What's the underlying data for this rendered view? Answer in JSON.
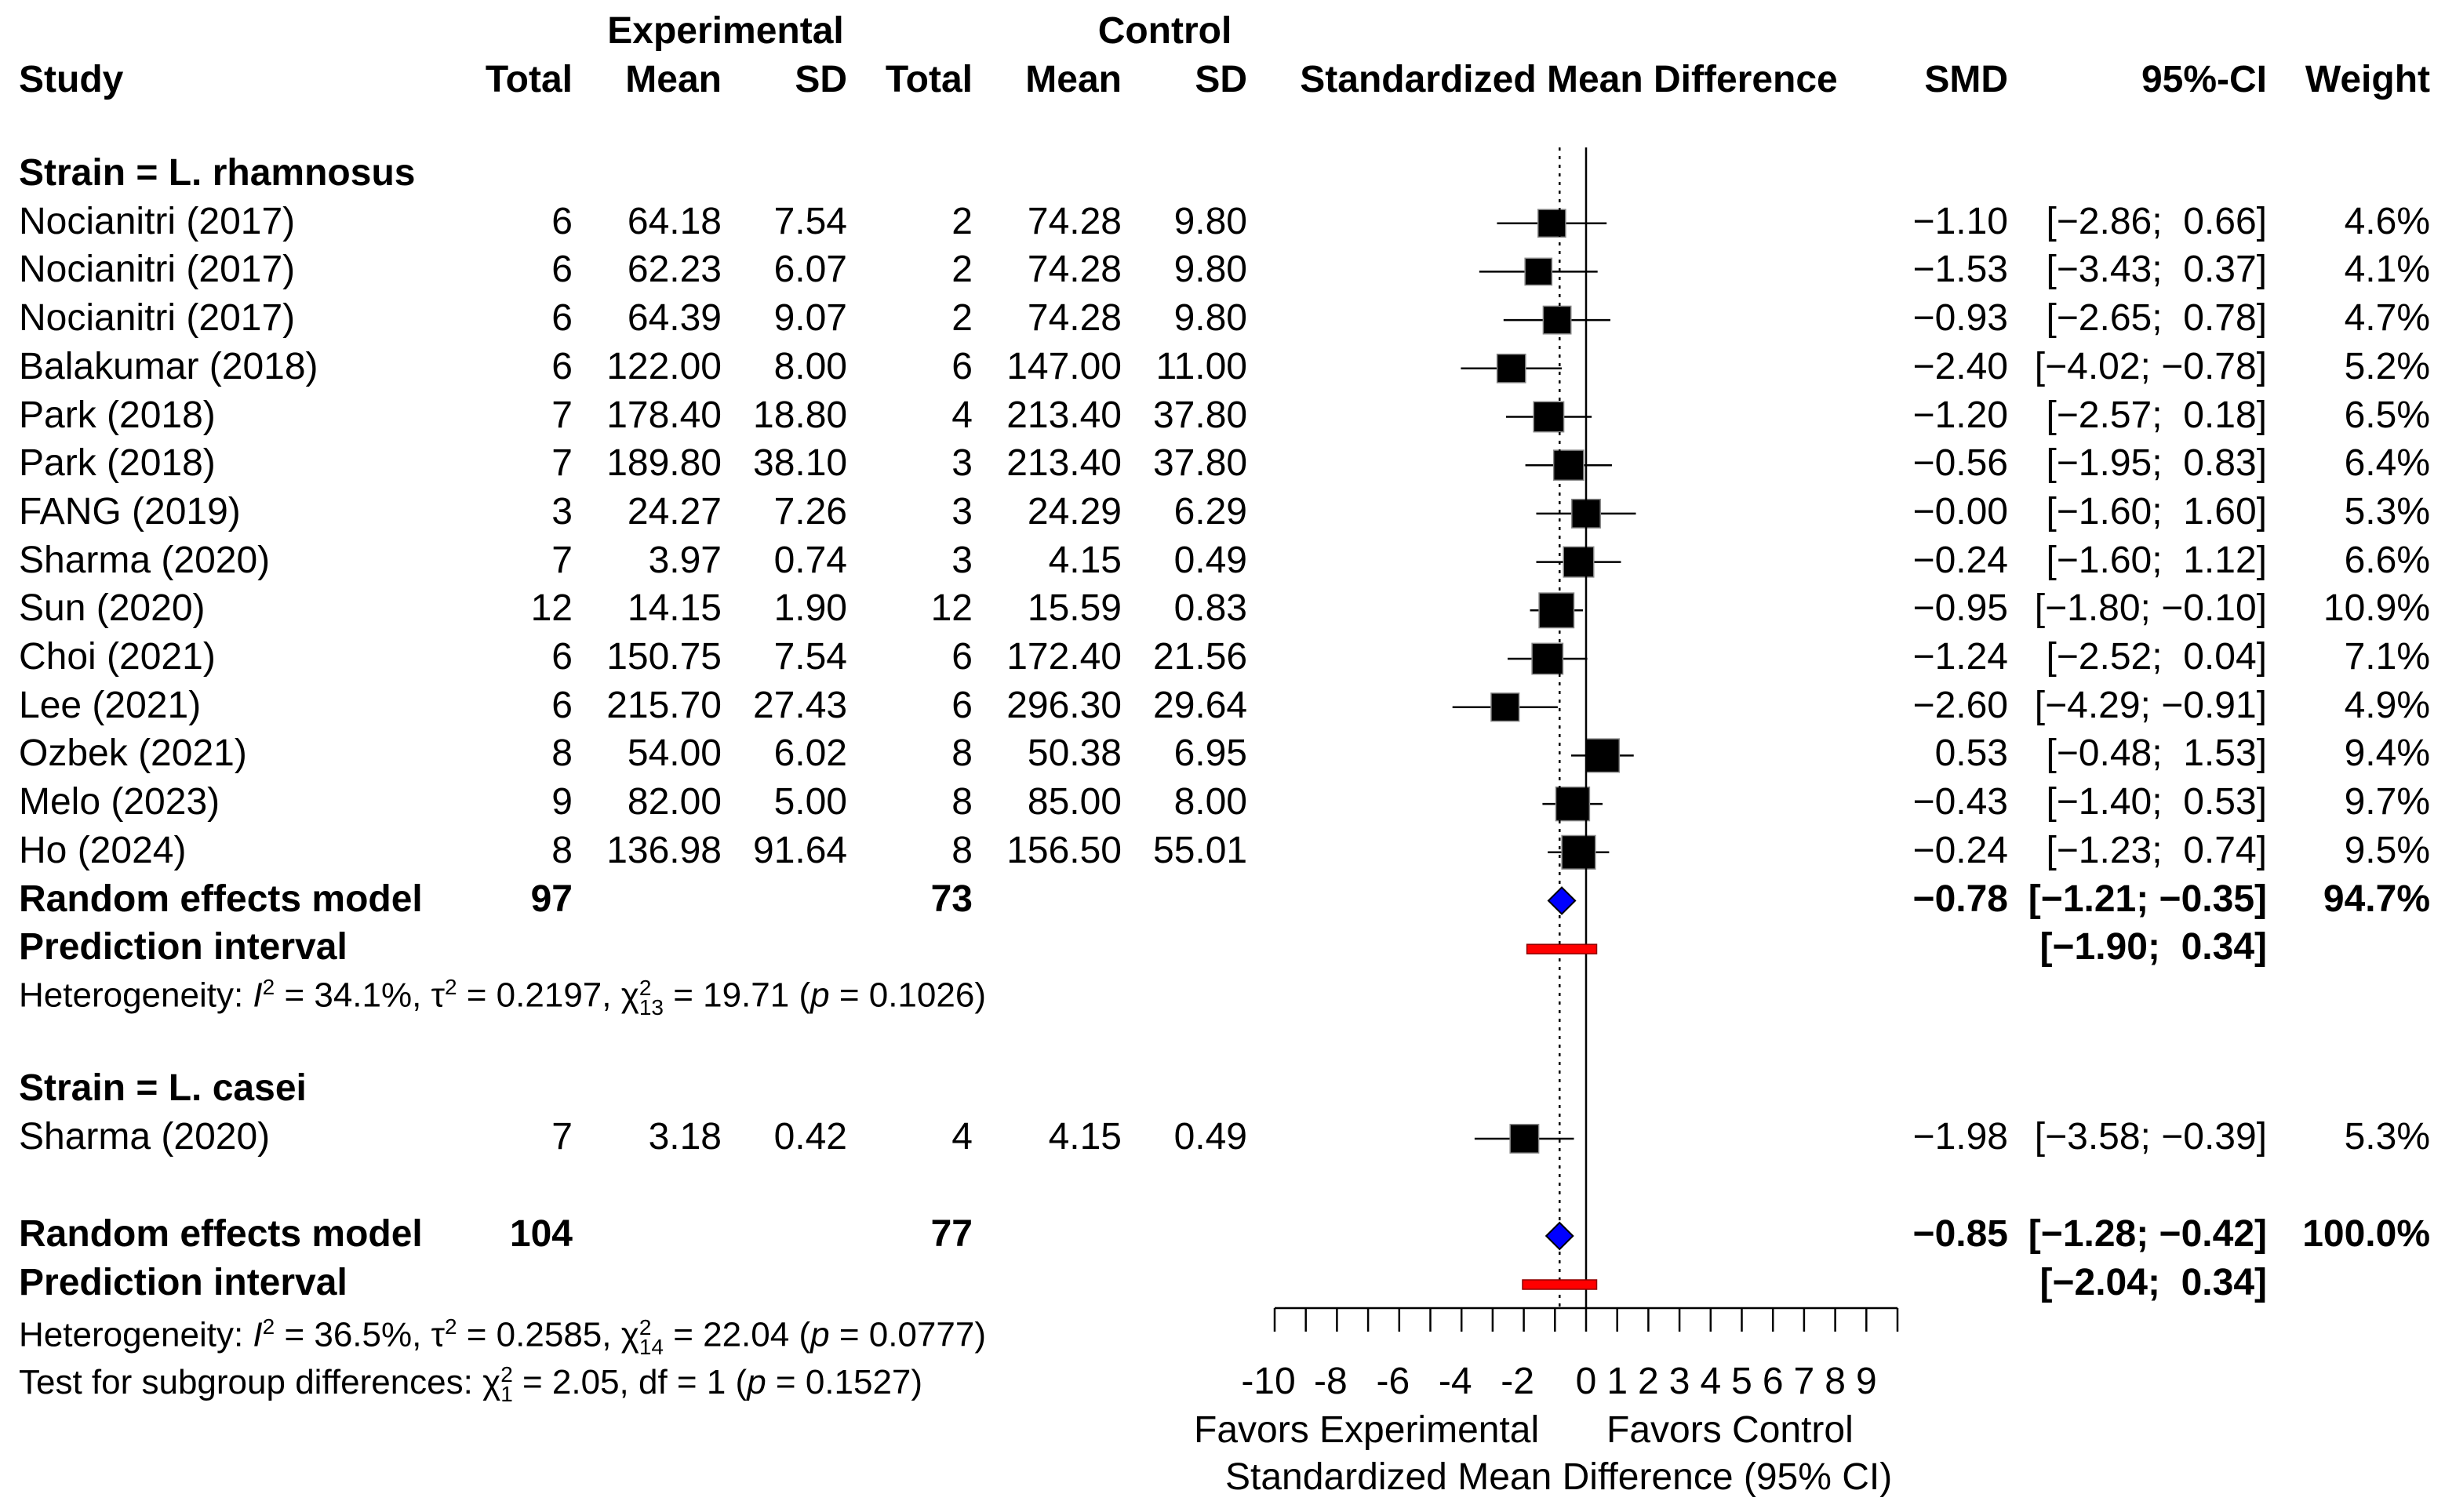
{
  "header": {
    "experimental": "Experimental",
    "control": "Control",
    "study": "Study",
    "total": "Total",
    "mean": "Mean",
    "sd": "SD",
    "smd_plot": "Standardized Mean Difference",
    "smd": "SMD",
    "ci": "95%-CI",
    "weight": "Weight"
  },
  "groups": [
    {
      "title": "Strain = L. rhamnosus",
      "studies": [
        {
          "study": "Nocianitri (2017)",
          "e_total": "6",
          "e_mean": "64.18",
          "e_sd": "7.54",
          "c_total": "2",
          "c_mean": "74.28",
          "c_sd": "9.80",
          "smd": "−1.10",
          "ci": "[−2.86;  0.66]",
          "weight": "4.6%"
        },
        {
          "study": "Nocianitri (2017)",
          "e_total": "6",
          "e_mean": "62.23",
          "e_sd": "6.07",
          "c_total": "2",
          "c_mean": "74.28",
          "c_sd": "9.80",
          "smd": "−1.53",
          "ci": "[−3.43;  0.37]",
          "weight": "4.1%"
        },
        {
          "study": "Nocianitri (2017)",
          "e_total": "6",
          "e_mean": "64.39",
          "e_sd": "9.07",
          "c_total": "2",
          "c_mean": "74.28",
          "c_sd": "9.80",
          "smd": "−0.93",
          "ci": "[−2.65;  0.78]",
          "weight": "4.7%"
        },
        {
          "study": "Balakumar (2018)",
          "e_total": "6",
          "e_mean": "122.00",
          "e_sd": "8.00",
          "c_total": "6",
          "c_mean": "147.00",
          "c_sd": "11.00",
          "smd": "−2.40",
          "ci": "[−4.02; −0.78]",
          "weight": "5.2%"
        },
        {
          "study": "Park (2018)",
          "e_total": "7",
          "e_mean": "178.40",
          "e_sd": "18.80",
          "c_total": "4",
          "c_mean": "213.40",
          "c_sd": "37.80",
          "smd": "−1.20",
          "ci": "[−2.57;  0.18]",
          "weight": "6.5%"
        },
        {
          "study": "Park (2018)",
          "e_total": "7",
          "e_mean": "189.80",
          "e_sd": "38.10",
          "c_total": "3",
          "c_mean": "213.40",
          "c_sd": "37.80",
          "smd": "−0.56",
          "ci": "[−1.95;  0.83]",
          "weight": "6.4%"
        },
        {
          "study": "FANG (2019)",
          "e_total": "3",
          "e_mean": "24.27",
          "e_sd": "7.26",
          "c_total": "3",
          "c_mean": "24.29",
          "c_sd": "6.29",
          "smd": "−0.00",
          "ci": "[−1.60;  1.60]",
          "weight": "5.3%"
        },
        {
          "study": "Sharma (2020)",
          "e_total": "7",
          "e_mean": "3.97",
          "e_sd": "0.74",
          "c_total": "3",
          "c_mean": "4.15",
          "c_sd": "0.49",
          "smd": "−0.24",
          "ci": "[−1.60;  1.12]",
          "weight": "6.6%"
        },
        {
          "study": "Sun (2020)",
          "e_total": "12",
          "e_mean": "14.15",
          "e_sd": "1.90",
          "c_total": "12",
          "c_mean": "15.59",
          "c_sd": "0.83",
          "smd": "−0.95",
          "ci": "[−1.80; −0.10]",
          "weight": "10.9%"
        },
        {
          "study": "Choi (2021)",
          "e_total": "6",
          "e_mean": "150.75",
          "e_sd": "7.54",
          "c_total": "6",
          "c_mean": "172.40",
          "c_sd": "21.56",
          "smd": "−1.24",
          "ci": "[−2.52;  0.04]",
          "weight": "7.1%"
        },
        {
          "study": "Lee (2021)",
          "e_total": "6",
          "e_mean": "215.70",
          "e_sd": "27.43",
          "c_total": "6",
          "c_mean": "296.30",
          "c_sd": "29.64",
          "smd": "−2.60",
          "ci": "[−4.29; −0.91]",
          "weight": "4.9%"
        },
        {
          "study": "Ozbek (2021)",
          "e_total": "8",
          "e_mean": "54.00",
          "e_sd": "6.02",
          "c_total": "8",
          "c_mean": "50.38",
          "c_sd": "6.95",
          "smd": "0.53",
          "ci": "[−0.48;  1.53]",
          "weight": "9.4%"
        },
        {
          "study": "Melo (2023)",
          "e_total": "9",
          "e_mean": "82.00",
          "e_sd": "5.00",
          "c_total": "8",
          "c_mean": "85.00",
          "c_sd": "8.00",
          "smd": "−0.43",
          "ci": "[−1.40;  0.53]",
          "weight": "9.7%"
        },
        {
          "study": "Ho (2024)",
          "e_total": "8",
          "e_mean": "136.98",
          "e_sd": "91.64",
          "c_total": "8",
          "c_mean": "156.50",
          "c_sd": "55.01",
          "smd": "−0.24",
          "ci": "[−1.23;  0.74]",
          "weight": "9.5%"
        }
      ],
      "model": {
        "label": "Random effects model",
        "e_total": "97",
        "c_total": "73",
        "smd": "−0.78",
        "ci": "[−1.21; −0.35]",
        "weight": "94.7%"
      },
      "prediction": {
        "label": "Prediction interval",
        "ci": "[−1.90;  0.34]"
      },
      "heterogeneity": "Heterogeneity: I² = 34.1%, τ² = 0.2197, χ²₁₃ = 19.71 (p = 0.1026)"
    },
    {
      "title": "Strain = L. casei",
      "studies": [
        {
          "study": "Sharma (2020)",
          "e_total": "7",
          "e_mean": "3.18",
          "e_sd": "0.42",
          "c_total": "4",
          "c_mean": "4.15",
          "c_sd": "0.49",
          "smd": "−1.98",
          "ci": "[−3.58; −0.39]",
          "weight": "5.3%"
        }
      ]
    }
  ],
  "overall": {
    "model": {
      "label": "Random effects model",
      "e_total": "104",
      "c_total": "77",
      "smd": "−0.85",
      "ci": "[−1.28; −0.42]",
      "weight": "100.0%"
    },
    "prediction": {
      "label": "Prediction interval",
      "ci": "[−2.04;  0.34]"
    },
    "heterogeneity": "Heterogeneity: I² = 36.5%, τ² = 0.2585, χ²₁₄ = 22.04 (p = 0.0777)",
    "subgroup_test": "Test for subgroup differences: χ²₁ = 2.05, df = 1 (p = 0.1527)"
  },
  "axis": {
    "favors_left": "Favors Experimental",
    "favors_right": "Favors Control",
    "xlabel": "Standardized Mean Difference (95% CI)",
    "ticks": [
      "-10",
      "-8",
      "-6",
      "-4",
      "-2",
      "0",
      "1",
      "2",
      "3",
      "4",
      "5",
      "6",
      "7",
      "8",
      "9"
    ]
  },
  "chart_data": {
    "type": "scatter",
    "title": "",
    "xlabel": "Standardized Mean Difference (95% CI)",
    "ylabel": "",
    "xlim": [
      -10,
      10
    ],
    "reference_line": 0,
    "overall_line": -0.85,
    "colors": {
      "diamond": "#0000ff",
      "prediction": "#ff0000",
      "square": "#000000"
    },
    "studies": [
      {
        "name": "Nocianitri (2017)",
        "group": "L. rhamnosus",
        "smd": -1.1,
        "lo": -2.86,
        "hi": 0.66,
        "weight": 4.6
      },
      {
        "name": "Nocianitri (2017)",
        "group": "L. rhamnosus",
        "smd": -1.53,
        "lo": -3.43,
        "hi": 0.37,
        "weight": 4.1
      },
      {
        "name": "Nocianitri (2017)",
        "group": "L. rhamnosus",
        "smd": -0.93,
        "lo": -2.65,
        "hi": 0.78,
        "weight": 4.7
      },
      {
        "name": "Balakumar (2018)",
        "group": "L. rhamnosus",
        "smd": -2.4,
        "lo": -4.02,
        "hi": -0.78,
        "weight": 5.2
      },
      {
        "name": "Park (2018)",
        "group": "L. rhamnosus",
        "smd": -1.2,
        "lo": -2.57,
        "hi": 0.18,
        "weight": 6.5
      },
      {
        "name": "Park (2018)",
        "group": "L. rhamnosus",
        "smd": -0.56,
        "lo": -1.95,
        "hi": 0.83,
        "weight": 6.4
      },
      {
        "name": "FANG (2019)",
        "group": "L. rhamnosus",
        "smd": 0.0,
        "lo": -1.6,
        "hi": 1.6,
        "weight": 5.3
      },
      {
        "name": "Sharma (2020)",
        "group": "L. rhamnosus",
        "smd": -0.24,
        "lo": -1.6,
        "hi": 1.12,
        "weight": 6.6
      },
      {
        "name": "Sun (2020)",
        "group": "L. rhamnosus",
        "smd": -0.95,
        "lo": -1.8,
        "hi": -0.1,
        "weight": 10.9
      },
      {
        "name": "Choi (2021)",
        "group": "L. rhamnosus",
        "smd": -1.24,
        "lo": -2.52,
        "hi": 0.04,
        "weight": 7.1
      },
      {
        "name": "Lee (2021)",
        "group": "L. rhamnosus",
        "smd": -2.6,
        "lo": -4.29,
        "hi": -0.91,
        "weight": 4.9
      },
      {
        "name": "Ozbek (2021)",
        "group": "L. rhamnosus",
        "smd": 0.53,
        "lo": -0.48,
        "hi": 1.53,
        "weight": 9.4
      },
      {
        "name": "Melo (2023)",
        "group": "L. rhamnosus",
        "smd": -0.43,
        "lo": -1.4,
        "hi": 0.53,
        "weight": 9.7
      },
      {
        "name": "Ho (2024)",
        "group": "L. rhamnosus",
        "smd": -0.24,
        "lo": -1.23,
        "hi": 0.74,
        "weight": 9.5
      },
      {
        "name": "Sharma (2020)",
        "group": "L. casei",
        "smd": -1.98,
        "lo": -3.58,
        "hi": -0.39,
        "weight": 5.3
      }
    ],
    "summaries": [
      {
        "name": "Random effects model (L. rhamnosus)",
        "smd": -0.78,
        "lo": -1.21,
        "hi": -0.35,
        "weight": 94.7
      },
      {
        "name": "Random effects model (overall)",
        "smd": -0.85,
        "lo": -1.28,
        "hi": -0.42,
        "weight": 100.0
      }
    ],
    "prediction_intervals": [
      {
        "name": "Prediction interval (L. rhamnosus)",
        "lo": -1.9,
        "hi": 0.34
      },
      {
        "name": "Prediction interval (overall)",
        "lo": -2.04,
        "hi": 0.34
      }
    ]
  }
}
